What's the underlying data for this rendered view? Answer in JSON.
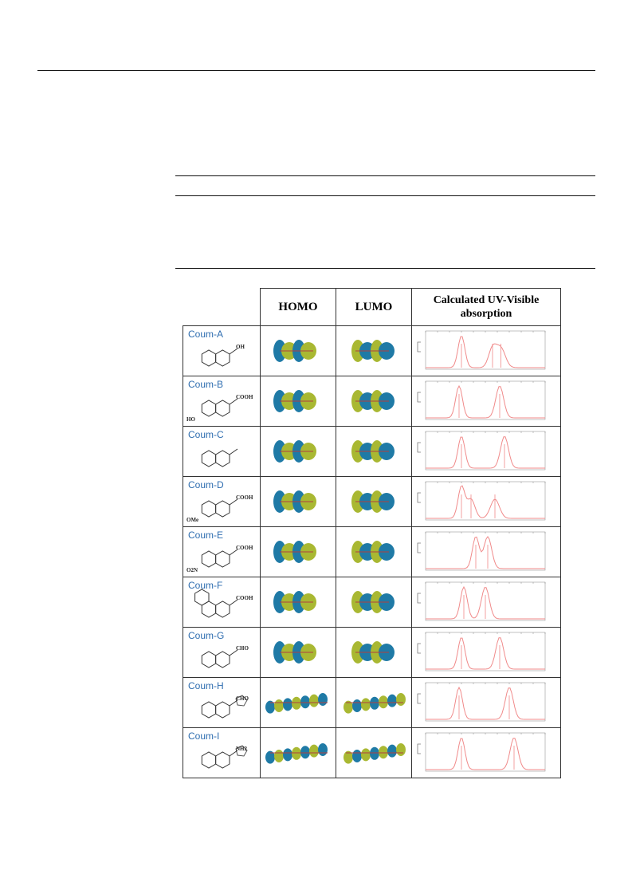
{
  "header": {
    "homo": "HOMO",
    "lumo": "LUMO",
    "uv_line1": "Calculated UV-Visible",
    "uv_line2": "absorption"
  },
  "colors": {
    "orbital_blue": "#1f7aa6",
    "orbital_green": "#a9b832",
    "label_blue": "#2e6db0",
    "spectrum": "#f08a8a"
  },
  "rows": [
    {
      "name": "Coum-A",
      "subs": [
        "OH"
      ],
      "peaks": [
        0.3,
        0.56,
        0.63
      ]
    },
    {
      "name": "Coum-B",
      "subs": [
        "COOH",
        "HO"
      ],
      "peaks": [
        0.28,
        0.62
      ]
    },
    {
      "name": "Coum-C",
      "subs": [],
      "peaks": [
        0.3,
        0.66
      ]
    },
    {
      "name": "Coum-D",
      "subs": [
        "COOH",
        "OMe"
      ],
      "peaks": [
        0.3,
        0.38,
        0.58
      ]
    },
    {
      "name": "Coum-E",
      "subs": [
        "COOH",
        "O2N"
      ],
      "peaks": [
        0.42,
        0.52
      ]
    },
    {
      "name": "Coum-F",
      "subs": [
        "COOH"
      ],
      "peaks": [
        0.32,
        0.5
      ]
    },
    {
      "name": "Coum-G",
      "subs": [
        "CHO"
      ],
      "peaks": [
        0.3,
        0.62
      ]
    },
    {
      "name": "Coum-H",
      "subs": [
        "CHO"
      ],
      "peaks": [
        0.28,
        0.7
      ]
    },
    {
      "name": "Coum-I",
      "subs": [
        "NH2"
      ],
      "peaks": [
        0.3,
        0.74
      ]
    }
  ]
}
